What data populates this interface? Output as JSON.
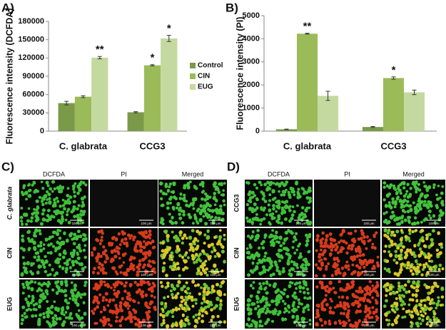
{
  "chart_data": [
    {
      "type": "bar",
      "panel_label": "A)",
      "ylabel": "Fluorescence intensity (DCFDA)",
      "categories": [
        "C. glabrata",
        "CCG3"
      ],
      "series": [
        {
          "name": "Control",
          "color": "#7b9a49",
          "values": [
            46000,
            31000
          ],
          "errors": [
            3000,
            1000
          ],
          "significance": [
            null,
            null
          ]
        },
        {
          "name": "CIN",
          "color": "#9bbb59",
          "values": [
            56500,
            108000
          ],
          "errors": [
            1500,
            1000
          ],
          "significance": [
            null,
            "*"
          ]
        },
        {
          "name": "EUG",
          "color": "#c4d9a0",
          "values": [
            120500,
            152000
          ],
          "errors": [
            2000,
            5000
          ],
          "significance": [
            "**",
            "*"
          ]
        }
      ],
      "ylim": [
        0,
        180000
      ],
      "yticks": [
        0,
        30000,
        60000,
        90000,
        120000,
        150000,
        180000
      ],
      "legend": "right"
    },
    {
      "type": "bar",
      "panel_label": "B)",
      "ylabel": "Fluorescence intensity (PI)",
      "categories": [
        "C. glabrata",
        "CCG3"
      ],
      "series": [
        {
          "name": "Control",
          "color": "#7b9a49",
          "values": [
            80,
            180
          ],
          "errors": [
            10,
            20
          ],
          "significance": [
            null,
            null
          ]
        },
        {
          "name": "CIN",
          "color": "#9bbb59",
          "values": [
            4220,
            2300
          ],
          "errors": [
            20,
            50
          ],
          "significance": [
            "**",
            "*"
          ]
        },
        {
          "name": "EUG",
          "color": "#c4d9a0",
          "values": [
            1530,
            1680
          ],
          "errors": [
            200,
            100
          ],
          "significance": [
            null,
            null
          ]
        }
      ],
      "ylim": [
        0,
        5000
      ],
      "yticks": [
        0,
        1000,
        2000,
        3000,
        4000,
        5000
      ],
      "legend": "none"
    }
  ],
  "panels": [
    {
      "label": "C)",
      "columns": [
        "DCFDA",
        "PI",
        "Merged"
      ],
      "rows": [
        "C. glabrata",
        "CIN",
        "EUG"
      ],
      "scale_bar": "100 μm"
    },
    {
      "label": "D)",
      "columns": [
        "DCFDA",
        "PI",
        "Merged"
      ],
      "rows": [
        "CCG3",
        "CIN",
        "EUG"
      ],
      "scale_bar": "100 μm"
    }
  ]
}
